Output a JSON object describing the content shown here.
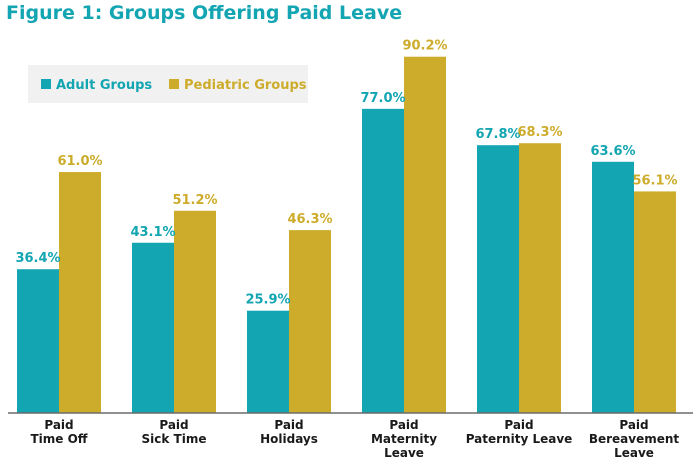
{
  "chart_data": {
    "type": "bar",
    "title": "Figure 1: Groups Offering Paid Leave",
    "categories": [
      [
        "Paid",
        "Time Off"
      ],
      [
        "Paid",
        "Sick Time"
      ],
      [
        "Paid",
        "Holidays"
      ],
      [
        "Paid",
        "Maternity",
        "Leave"
      ],
      [
        "Paid",
        "Paternity Leave"
      ],
      [
        "Paid",
        "Bereavement",
        "Leave"
      ]
    ],
    "series": [
      {
        "name": "Adult Groups",
        "color": "#13a5b2",
        "values": [
          36.4,
          43.1,
          25.9,
          77.0,
          67.8,
          63.6
        ],
        "labels": [
          "36.4%",
          "43.1%",
          "25.9%",
          "77.0%",
          "67.8%",
          "63.6%"
        ]
      },
      {
        "name": "Pediatric Groups",
        "color": "#cdac2b",
        "values": [
          61.0,
          51.2,
          46.3,
          90.2,
          68.3,
          56.1
        ],
        "labels": [
          "61.0%",
          "51.2%",
          "46.3%",
          "90.2%",
          "68.3%",
          "56.1%"
        ]
      }
    ],
    "ylim": [
      0,
      100
    ],
    "xlabel": "",
    "ylabel": "",
    "legend": "top-left",
    "grid": false
  }
}
